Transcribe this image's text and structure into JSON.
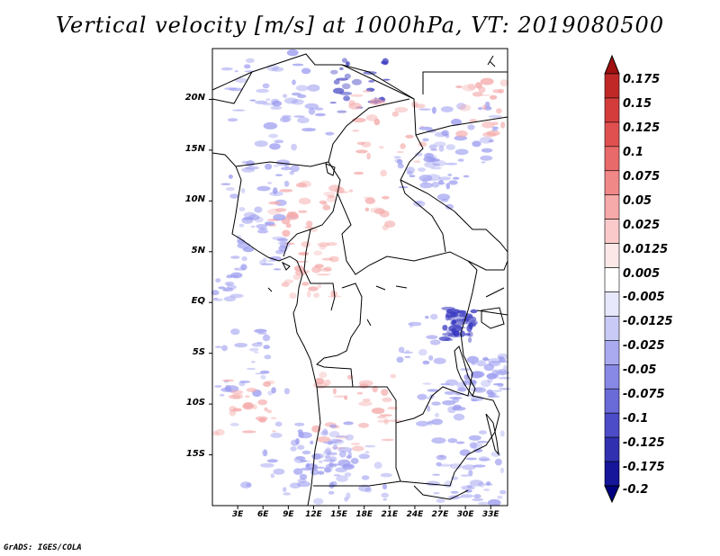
{
  "title": "Vertical velocity [m/s] at 1000hPa, VT: 2019080500",
  "credit": "GrADS: IGES/COLA",
  "map": {
    "lon_range": [
      0,
      35
    ],
    "lat_range": [
      -20,
      25
    ],
    "lat_labels": [
      "20N",
      "15N",
      "10N",
      "5N",
      "EQ",
      "5S",
      "10S",
      "15S"
    ],
    "lat_values": [
      20,
      15,
      10,
      5,
      0,
      -5,
      -10,
      -15
    ],
    "lon_labels": [
      "3E",
      "6E",
      "9E",
      "12E",
      "15E",
      "18E",
      "21E",
      "24E",
      "27E",
      "30E",
      "33E"
    ],
    "lon_values": [
      3,
      6,
      9,
      12,
      15,
      18,
      21,
      24,
      27,
      30,
      33
    ]
  },
  "colorbar": {
    "labels": [
      "0.175",
      "0.15",
      "0.125",
      "0.1",
      "0.075",
      "0.05",
      "0.025",
      "0.0125",
      "0.005",
      "-0.005",
      "-0.0125",
      "-0.025",
      "-0.05",
      "-0.075",
      "-0.1",
      "-0.125",
      "-0.175",
      "-0.2"
    ],
    "colors": [
      "#a01010",
      "#c02828",
      "#d43c3c",
      "#e05050",
      "#e86a6a",
      "#f08888",
      "#f6aaaa",
      "#facaca",
      "#fde8e8",
      "#ffffff",
      "#e8e8fc",
      "#cacaf6",
      "#aaaaf0",
      "#8888e6",
      "#6a6ad8",
      "#4c4cc8",
      "#3030b0",
      "#16169a",
      "#000080"
    ]
  },
  "colors": {
    "positive": "#f4a8a8",
    "negative": "#9c9cf0",
    "strong_negative": "#3a3ac0"
  }
}
